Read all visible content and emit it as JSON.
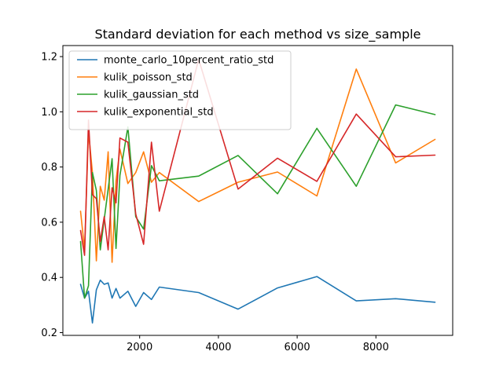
{
  "chart_data": {
    "type": "line",
    "title": "Standard deviation for each method vs size_sample",
    "xlabel": "",
    "ylabel": "",
    "xlim": [
      50,
      9950
    ],
    "ylim": [
      0.19,
      1.24
    ],
    "xticks": [
      2000,
      4000,
      6000,
      8000
    ],
    "yticks": [
      0.2,
      0.4,
      0.6,
      0.8,
      1.0,
      1.2
    ],
    "legend_position": "top-left",
    "grid": false,
    "series": [
      {
        "name": "monte_carlo_10percent_ratio_std",
        "color": "#1f77b4",
        "x": [
          500,
          600,
          700,
          800,
          900,
          1000,
          1100,
          1200,
          1300,
          1400,
          1500,
          1700,
          1900,
          2100,
          2300,
          2500,
          3500,
          4500,
          5500,
          6500,
          7500,
          8500,
          9500
        ],
        "y": [
          0.375,
          0.325,
          0.35,
          0.235,
          0.355,
          0.39,
          0.375,
          0.38,
          0.325,
          0.36,
          0.325,
          0.35,
          0.295,
          0.345,
          0.32,
          0.365,
          0.345,
          0.285,
          0.362,
          0.403,
          0.315,
          0.323,
          0.31
        ]
      },
      {
        "name": "kulik_poisson_std",
        "color": "#ff7f0e",
        "x": [
          500,
          600,
          700,
          800,
          900,
          1000,
          1100,
          1200,
          1300,
          1400,
          1500,
          1700,
          1900,
          2100,
          2300,
          2500,
          3500,
          4500,
          5500,
          6500,
          7500,
          8500,
          9500
        ],
        "y": [
          0.64,
          0.5,
          0.93,
          0.78,
          0.46,
          0.73,
          0.68,
          0.855,
          0.455,
          0.75,
          0.865,
          0.74,
          0.78,
          0.855,
          0.745,
          0.78,
          0.675,
          0.745,
          0.782,
          0.695,
          1.155,
          0.815,
          0.9
        ]
      },
      {
        "name": "kulik_gaussian_std",
        "color": "#2ca02c",
        "x": [
          500,
          600,
          700,
          800,
          900,
          1000,
          1100,
          1200,
          1300,
          1400,
          1500,
          1700,
          1900,
          2100,
          2300,
          2500,
          3500,
          4500,
          5500,
          6500,
          7500,
          8500,
          9500
        ],
        "y": [
          0.53,
          0.325,
          0.37,
          0.78,
          0.715,
          0.5,
          0.61,
          0.72,
          0.83,
          0.505,
          0.77,
          0.945,
          0.62,
          0.575,
          0.805,
          0.75,
          0.767,
          0.842,
          0.703,
          0.94,
          0.73,
          1.025,
          0.99
        ]
      },
      {
        "name": "kulik_exponential_std",
        "color": "#d62728",
        "x": [
          500,
          600,
          700,
          800,
          900,
          1000,
          1100,
          1200,
          1300,
          1400,
          1500,
          1700,
          1900,
          2100,
          2300,
          2500,
          3500,
          4500,
          5500,
          6500,
          7500,
          8500,
          9500
        ],
        "y": [
          0.57,
          0.48,
          0.97,
          0.7,
          0.685,
          0.53,
          0.62,
          0.5,
          0.725,
          0.67,
          0.905,
          0.89,
          0.63,
          0.52,
          0.89,
          0.64,
          1.19,
          0.72,
          0.832,
          0.748,
          0.992,
          0.837,
          0.843
        ]
      }
    ]
  }
}
